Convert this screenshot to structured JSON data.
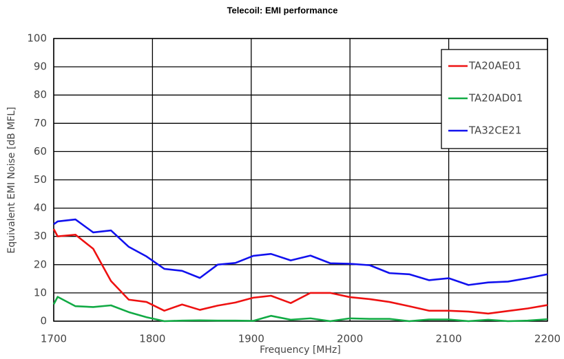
{
  "chart_data": {
    "type": "line",
    "title": "Telecoil: EMI  performance",
    "x_label": "Frequency [MHz]",
    "y_label": "Equivalent EMI Noise [dB MFL]",
    "x": [
      1700,
      1704,
      1722,
      1740,
      1758,
      1776,
      1794,
      1812,
      1830,
      1848,
      1866,
      1884,
      1902,
      1920,
      1940,
      1960,
      1980,
      2000,
      2020,
      2040,
      2060,
      2080,
      2100,
      2120,
      2140,
      2160,
      2180,
      2200
    ],
    "series": [
      {
        "name": "TA20AE01",
        "color": "#ee1111",
        "values": [
          32.6,
          30,
          30.6,
          25.6,
          14.2,
          7.6,
          6.8,
          3.7,
          5.9,
          4,
          5.5,
          6.6,
          8.3,
          9,
          6.4,
          10,
          10,
          8.5,
          7.8,
          6.8,
          5.3,
          3.7,
          3.7,
          3.4,
          2.7,
          3.6,
          4.5,
          5.7
        ]
      },
      {
        "name": "TA20AD01",
        "color": "#11aa44",
        "values": [
          6,
          8.6,
          5.3,
          5,
          5.6,
          3.2,
          1.4,
          0,
          0.2,
          0.3,
          0.2,
          0.2,
          0.1,
          1.9,
          0.5,
          1,
          0,
          1,
          0.8,
          0.8,
          0,
          0.6,
          0.6,
          0,
          0.5,
          0,
          0.2,
          0.7
        ]
      },
      {
        "name": "TA32CE21",
        "color": "#1111ee",
        "values": [
          34.3,
          35.3,
          36,
          31.4,
          32.1,
          26.3,
          22.9,
          18.5,
          17.8,
          15.3,
          20,
          20.6,
          23.1,
          23.8,
          21.5,
          23.2,
          20.5,
          20.3,
          19.8,
          17,
          16.6,
          14.5,
          15.2,
          12.8,
          13.7,
          14,
          15.2,
          16.6
        ]
      }
    ],
    "xlim": [
      1700,
      2200
    ],
    "xticks": [
      1700,
      1800,
      1900,
      2000,
      2100,
      2200
    ],
    "ylim": [
      0,
      100
    ],
    "yticks": [
      0,
      10,
      20,
      30,
      40,
      50,
      60,
      70,
      80,
      90,
      100
    ],
    "grid": true,
    "legend": "upper right"
  }
}
